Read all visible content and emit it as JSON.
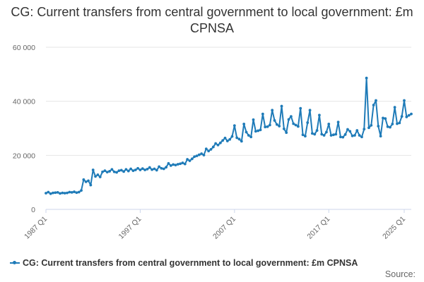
{
  "title": "CG: Current transfers from central government to local government: £m CPNSA",
  "legend": {
    "label": "CG: Current transfers from central government to local government: £m CPNSA"
  },
  "source_label": "Source:",
  "colors": {
    "series": "#1f7bb8",
    "grid": "#e6e6e6",
    "axis": "#ccd6eb",
    "text": "#333333"
  },
  "chart_data": {
    "type": "line",
    "title": "CG: Current transfers from central government to local government: £m CPNSA",
    "xlabel": "",
    "ylabel": "",
    "x_tick_labels": [
      "1987 Q1",
      "1997 Q1",
      "2007 Q1",
      "2017 Q1",
      "2025 Q1"
    ],
    "y_tick_labels": [
      "0",
      "20 000",
      "40 000",
      "60 000"
    ],
    "ylim": [
      0,
      60000
    ],
    "grid": true,
    "legend_position": "bottom",
    "series": [
      {
        "name": "CG: Current transfers from central government to local government: £m CPNSA",
        "x_start": "1987 Q1",
        "frequency": "quarterly",
        "values": [
          6000,
          6400,
          5800,
          6100,
          6200,
          6300,
          5900,
          6100,
          6000,
          6100,
          6400,
          6300,
          6500,
          6200,
          6400,
          7000,
          11000,
          10200,
          10600,
          9000,
          14600,
          12200,
          12800,
          12000,
          13900,
          14300,
          13800,
          14100,
          14800,
          13900,
          13700,
          14300,
          14500,
          14000,
          14800,
          14200,
          15000,
          14300,
          14600,
          15200,
          14600,
          15100,
          14600,
          14900,
          15500,
          14700,
          15000,
          14500,
          15800,
          15200,
          15000,
          15600,
          17000,
          16200,
          16600,
          16400,
          16700,
          16900,
          17200,
          16800,
          18500,
          18000,
          18700,
          19500,
          19800,
          20200,
          20600,
          20100,
          22400,
          21600,
          22200,
          23100,
          24400,
          23800,
          24600,
          25500,
          26400,
          25300,
          25900,
          27000,
          31000,
          26500,
          26000,
          25200,
          31600,
          28600,
          27400,
          26800,
          33200,
          28900,
          29100,
          29400,
          35300,
          30500,
          30600,
          31200,
          36700,
          32900,
          31400,
          30800,
          38200,
          29800,
          28400,
          33300,
          34400,
          31700,
          31200,
          30700,
          37400,
          27600,
          27100,
          32100,
          36700,
          28100,
          27800,
          29200,
          34900,
          27800,
          27400,
          28600,
          31600,
          27400,
          27600,
          27800,
          32300,
          26800,
          26700,
          27700,
          29600,
          28900,
          27200,
          27400,
          29200,
          27400,
          26800,
          29700,
          48600,
          30200,
          31100,
          38600,
          40300,
          30800,
          27100,
          33800,
          33600,
          30600,
          30400,
          31600,
          37800,
          31700,
          32000,
          34400,
          40300,
          34200,
          34800,
          35300
        ]
      }
    ]
  }
}
